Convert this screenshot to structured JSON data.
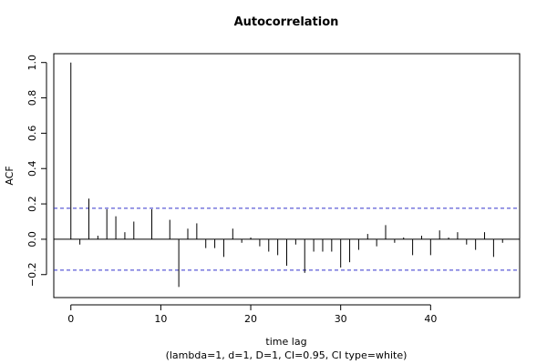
{
  "chart_data": {
    "type": "bar",
    "title": "Autocorrelation",
    "xlabel": "time lag",
    "subtitle": "(lambda=1, d=1, D=1, CI=0.95, CI type=white)",
    "ylabel": "ACF",
    "xlim": [
      -1.9,
      49.9
    ],
    "ylim": [
      -0.33,
      1.05
    ],
    "x_ticks": [
      0,
      10,
      20,
      30,
      40
    ],
    "y_ticks": [
      -0.2,
      0.0,
      0.2,
      0.4,
      0.6,
      0.8,
      1.0
    ],
    "x_tick_labels": [
      "0",
      "10",
      "20",
      "30",
      "40"
    ],
    "y_tick_labels": [
      "−0.2",
      "0.0",
      "0.2",
      "0.4",
      "0.6",
      "0.8",
      "1.0"
    ],
    "ci": [
      0.175,
      -0.175
    ],
    "ci_color": "#3333cc",
    "lags": [
      0,
      1,
      2,
      3,
      4,
      5,
      6,
      7,
      8,
      9,
      10,
      11,
      12,
      13,
      14,
      15,
      16,
      17,
      18,
      19,
      20,
      21,
      22,
      23,
      24,
      25,
      26,
      27,
      28,
      29,
      30,
      31,
      32,
      33,
      34,
      35,
      36,
      37,
      38,
      39,
      40,
      41,
      42,
      43,
      44,
      45,
      46,
      47,
      48
    ],
    "values": [
      1.0,
      -0.03,
      0.23,
      0.02,
      0.17,
      0.13,
      0.04,
      0.1,
      0.0,
      0.17,
      0.0,
      0.11,
      -0.27,
      0.06,
      0.09,
      -0.05,
      -0.05,
      -0.1,
      0.06,
      -0.02,
      0.01,
      -0.04,
      -0.07,
      -0.09,
      -0.15,
      -0.03,
      -0.19,
      -0.07,
      -0.07,
      -0.07,
      -0.16,
      -0.13,
      -0.06,
      0.03,
      -0.04,
      0.08,
      -0.02,
      0.01,
      -0.09,
      0.02,
      -0.09,
      0.05,
      0.01,
      0.04,
      -0.03,
      -0.06,
      0.04,
      -0.1,
      -0.02
    ]
  }
}
